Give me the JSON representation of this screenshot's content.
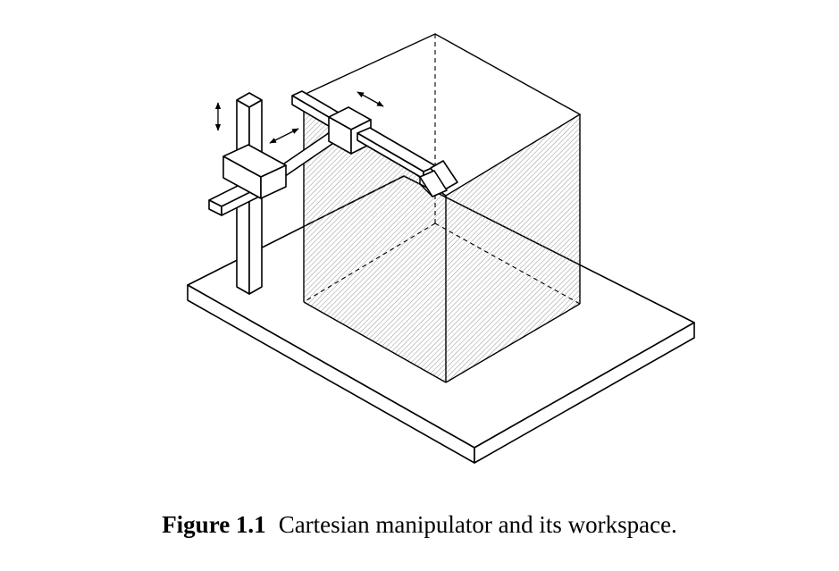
{
  "caption": {
    "label": "Figure 1.1",
    "text": "Cartesian manipulator and its workspace."
  },
  "figure": {
    "components": [
      "base-plate",
      "vertical-column",
      "vertical-carriage",
      "horizontal-arm",
      "arm-carriage",
      "extension-arm",
      "gripper",
      "workspace-box"
    ],
    "motion_arrows": [
      "vertical-motion-arrow",
      "arm-motion-arrow",
      "carriage-motion-arrow"
    ],
    "workspace_fill": "hatched",
    "line_color": "#000000"
  }
}
